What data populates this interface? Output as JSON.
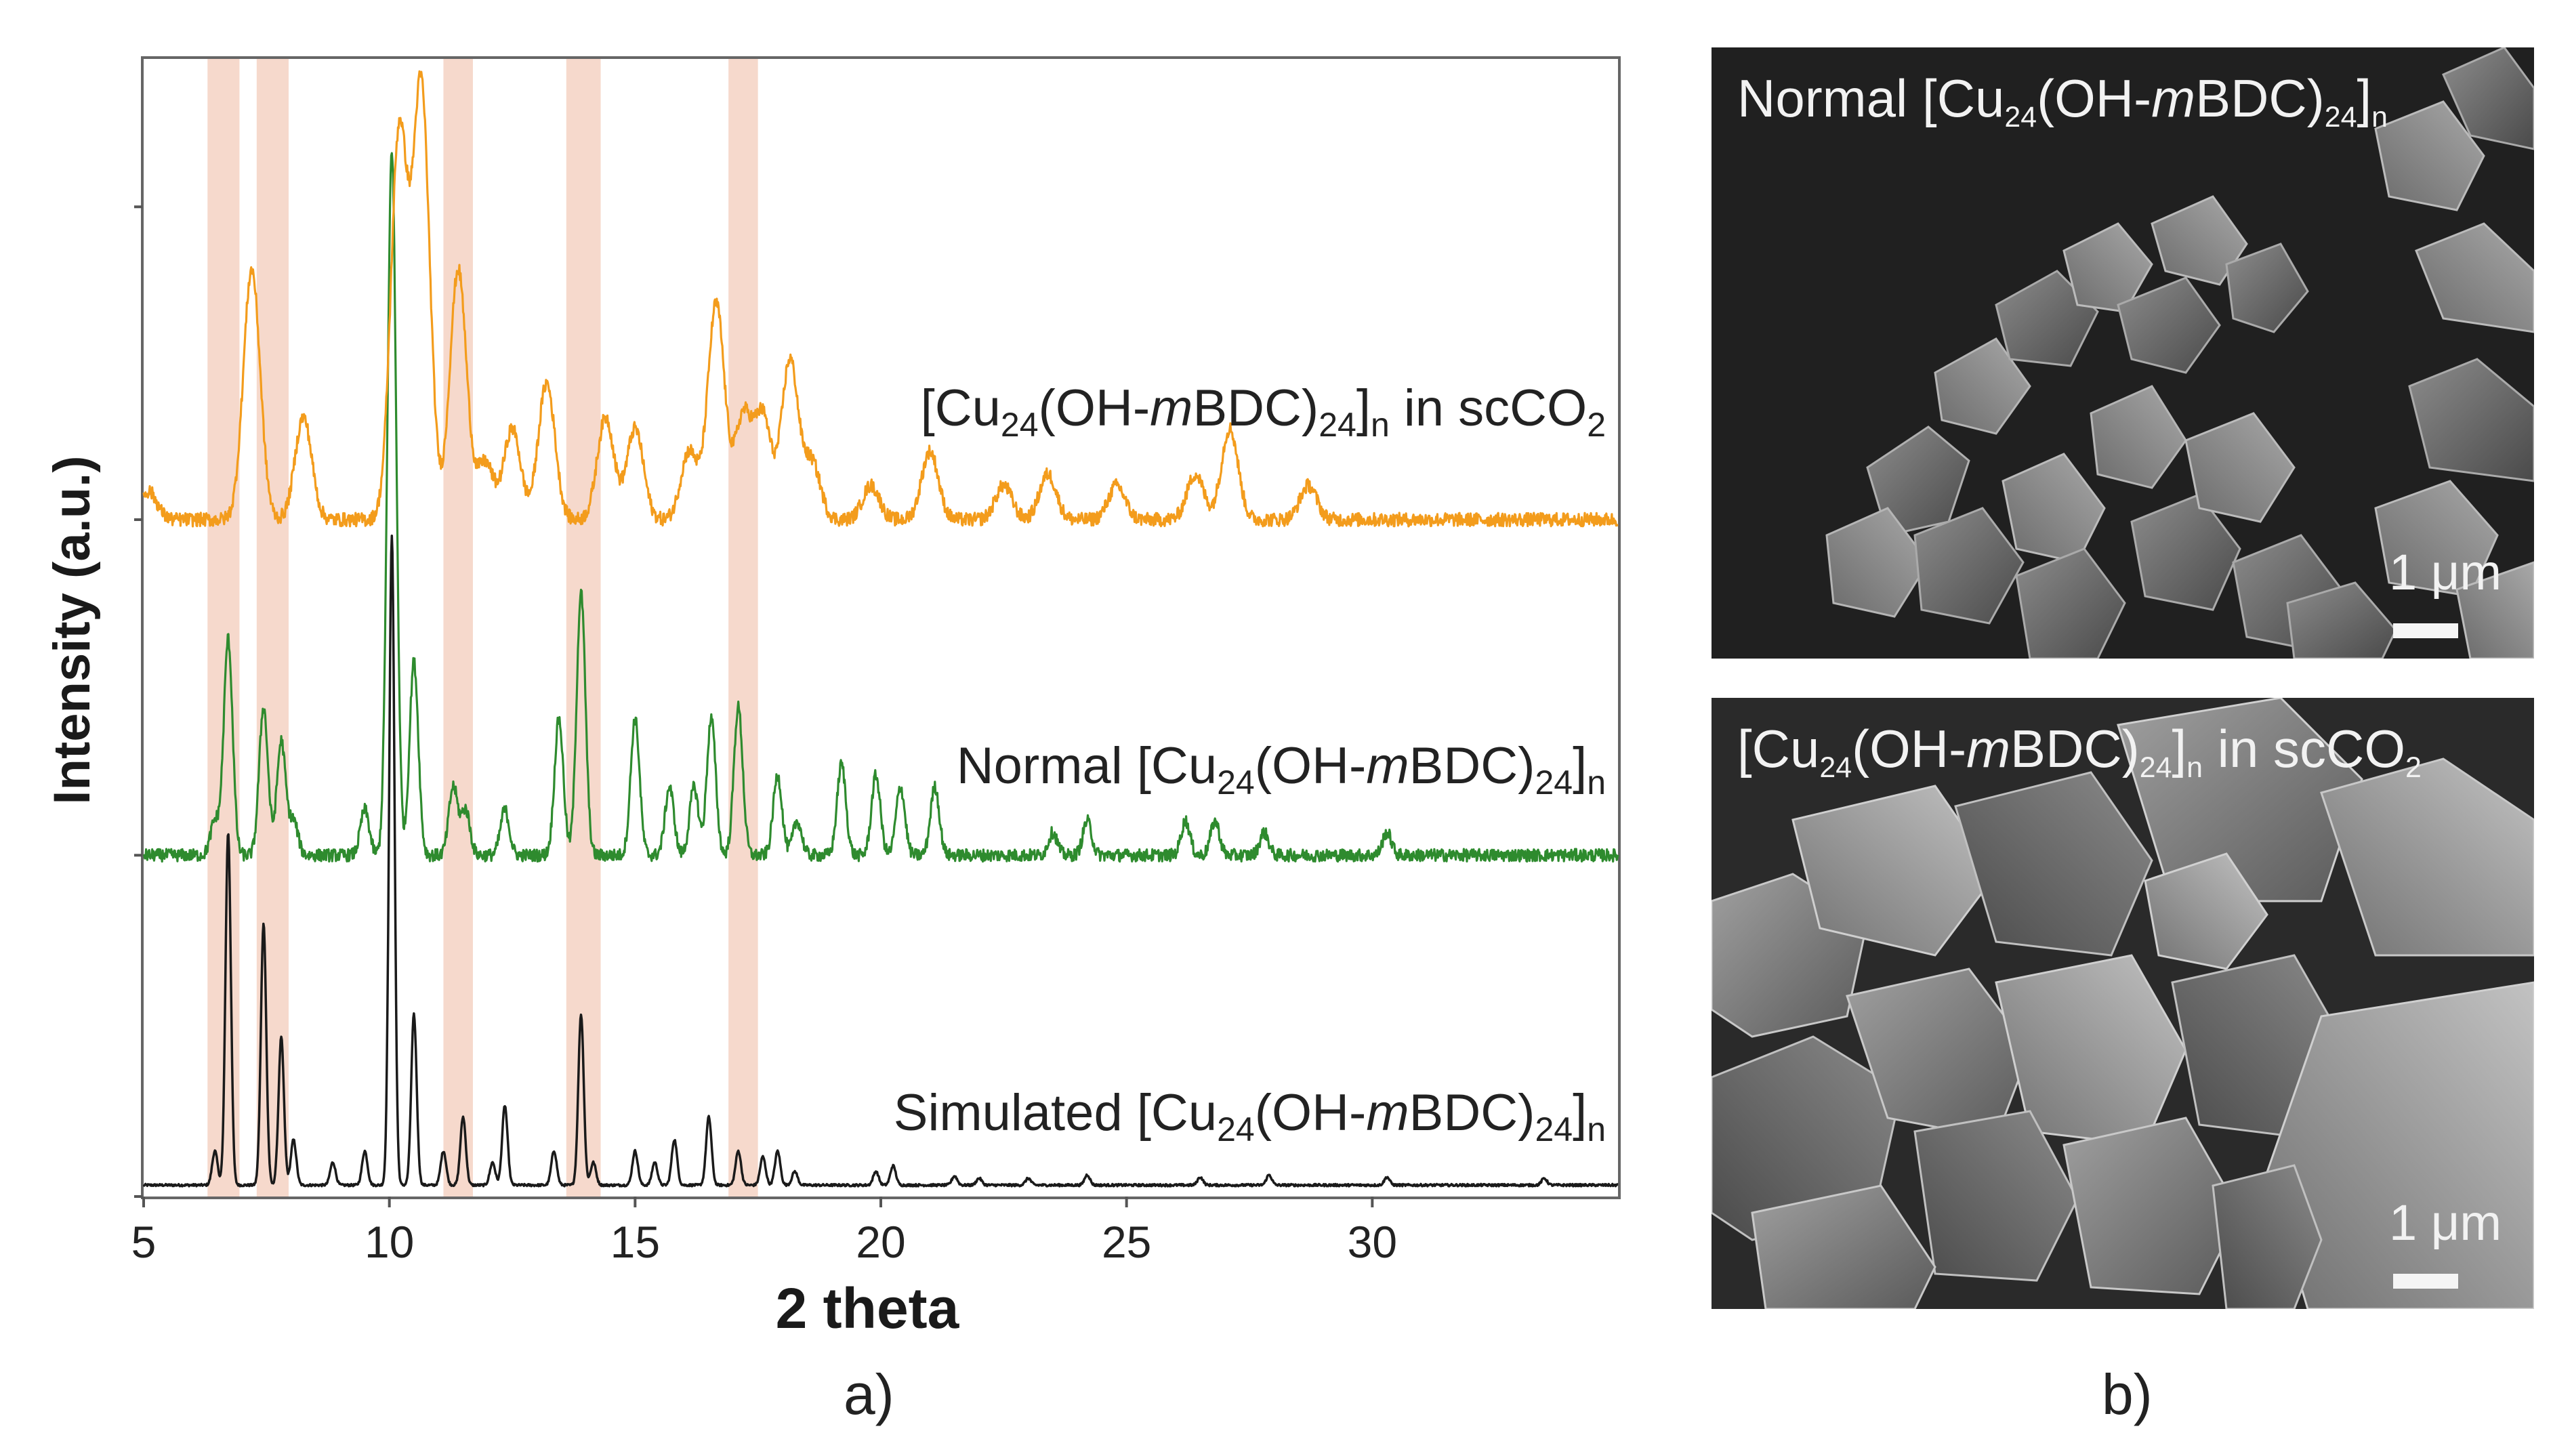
{
  "panels": {
    "a": "a)",
    "b": "b)"
  },
  "chart_data": {
    "type": "line",
    "xlabel": "2 theta",
    "ylabel": "Intensity (a.u.)",
    "xlim": [
      5,
      35
    ],
    "x_ticks": [
      5,
      10,
      15,
      20,
      25,
      30
    ],
    "ylim": [
      0,
      100
    ],
    "highlight_bands": [
      [
        6.3,
        6.95
      ],
      [
        7.3,
        7.95
      ],
      [
        11.1,
        11.7
      ],
      [
        13.6,
        14.3
      ],
      [
        16.9,
        17.5
      ]
    ],
    "highlight_color": "#f6d9cc",
    "series": [
      {
        "name": "Simulated [Cu24(OH-mBDC)24]n",
        "label_main": "Simulated [Cu",
        "label_sub1": "24",
        "label_mid": "(OH-",
        "label_ital": "m",
        "label_mid2": "BDC)",
        "label_sub2": "24",
        "label_tail": "]",
        "label_sub3": "n",
        "label_end": "",
        "label_sub4": "",
        "color": "#1a1a1a",
        "baseline": 1,
        "noise": 0.1,
        "peaks": [
          [
            6.45,
            3
          ],
          [
            6.72,
            31
          ],
          [
            7.44,
            23
          ],
          [
            7.8,
            13
          ],
          [
            8.05,
            4
          ],
          [
            8.85,
            2
          ],
          [
            9.5,
            3
          ],
          [
            10.05,
            57
          ],
          [
            10.5,
            15
          ],
          [
            11.1,
            3
          ],
          [
            11.5,
            6
          ],
          [
            12.1,
            2
          ],
          [
            12.35,
            7
          ],
          [
            13.35,
            3
          ],
          [
            13.9,
            15
          ],
          [
            14.15,
            2
          ],
          [
            15.0,
            3
          ],
          [
            15.4,
            2
          ],
          [
            15.8,
            4
          ],
          [
            16.5,
            6
          ],
          [
            17.1,
            3
          ],
          [
            17.6,
            2.5
          ],
          [
            17.9,
            3
          ],
          [
            18.25,
            1.2
          ],
          [
            19.9,
            1.2
          ],
          [
            20.25,
            1.7
          ],
          [
            21.5,
            0.8
          ],
          [
            22.0,
            0.6
          ],
          [
            23.0,
            0.6
          ],
          [
            24.2,
            0.9
          ],
          [
            26.5,
            0.7
          ],
          [
            27.9,
            0.9
          ],
          [
            30.3,
            0.7
          ],
          [
            33.5,
            0.6
          ]
        ],
        "width": 0.055
      },
      {
        "name": "Normal [Cu24(OH-mBDC)24]n",
        "label_main": "Normal [Cu",
        "label_sub1": "24",
        "label_mid": "(OH-",
        "label_ital": "m",
        "label_mid2": "BDC)",
        "label_sub2": "24",
        "label_tail": "]",
        "label_sub3": "n",
        "label_end": "",
        "label_sub4": "",
        "color": "#2e8b2e",
        "baseline": 30,
        "noise": 0.55,
        "peaks": [
          [
            6.45,
            3
          ],
          [
            6.72,
            19
          ],
          [
            7.44,
            13
          ],
          [
            7.8,
            10
          ],
          [
            8.05,
            3
          ],
          [
            9.5,
            4
          ],
          [
            10.05,
            62
          ],
          [
            10.5,
            17
          ],
          [
            11.3,
            6
          ],
          [
            11.55,
            4
          ],
          [
            12.35,
            4
          ],
          [
            13.45,
            12
          ],
          [
            13.9,
            23
          ],
          [
            15.0,
            12
          ],
          [
            15.7,
            6
          ],
          [
            16.2,
            6
          ],
          [
            16.55,
            12
          ],
          [
            17.1,
            13
          ],
          [
            17.9,
            7
          ],
          [
            18.3,
            3
          ],
          [
            19.2,
            8
          ],
          [
            19.9,
            7
          ],
          [
            20.4,
            6
          ],
          [
            21.1,
            6
          ],
          [
            23.5,
            2
          ],
          [
            24.2,
            3
          ],
          [
            26.2,
            3
          ],
          [
            26.8,
            3
          ],
          [
            27.8,
            2
          ],
          [
            30.3,
            2
          ]
        ],
        "width": 0.09
      },
      {
        "name": "[Cu24(OH-mBDC)24]n in scCO2",
        "label_main": "[Cu",
        "label_sub1": "24",
        "label_mid": "(OH-",
        "label_ital": "m",
        "label_mid2": "BDC)",
        "label_sub2": "24",
        "label_tail": "]",
        "label_sub3": "n",
        "label_end": " in scCO",
        "label_sub4": "2",
        "color": "#f39c1c",
        "baseline": 59.5,
        "noise": 0.6,
        "peaks": [
          [
            5.1,
            2.5
          ],
          [
            7.2,
            22
          ],
          [
            8.25,
            9
          ],
          [
            10.2,
            34
          ],
          [
            10.65,
            38
          ],
          [
            11.4,
            22
          ],
          [
            11.95,
            5
          ],
          [
            12.5,
            8
          ],
          [
            13.2,
            12
          ],
          [
            14.4,
            9
          ],
          [
            15.0,
            8
          ],
          [
            16.1,
            6
          ],
          [
            16.65,
            19
          ],
          [
            17.2,
            9
          ],
          [
            17.6,
            9
          ],
          [
            18.15,
            14
          ],
          [
            18.6,
            5
          ],
          [
            19.8,
            3
          ],
          [
            21.0,
            6
          ],
          [
            22.5,
            3
          ],
          [
            23.4,
            4
          ],
          [
            24.8,
            3
          ],
          [
            26.4,
            4
          ],
          [
            27.1,
            8
          ],
          [
            28.7,
            3
          ]
        ],
        "width": 0.17
      }
    ]
  },
  "sem_images": [
    {
      "title_pre": "Normal [Cu",
      "title_sub1": "24",
      "title_mid": "(OH-",
      "title_ital": "m",
      "title_mid2": "BDC)",
      "title_sub2": "24",
      "title_tail": "]",
      "title_sub3": "n",
      "title_end": "",
      "title_sub4": "",
      "scale": "1 μm"
    },
    {
      "title_pre": "[Cu",
      "title_sub1": "24",
      "title_mid": "(OH-",
      "title_ital": "m",
      "title_mid2": "BDC)",
      "title_sub2": "24",
      "title_tail": "]",
      "title_sub3": "n",
      "title_end": " in scCO",
      "title_sub4": "2",
      "scale": "1 μm"
    }
  ]
}
